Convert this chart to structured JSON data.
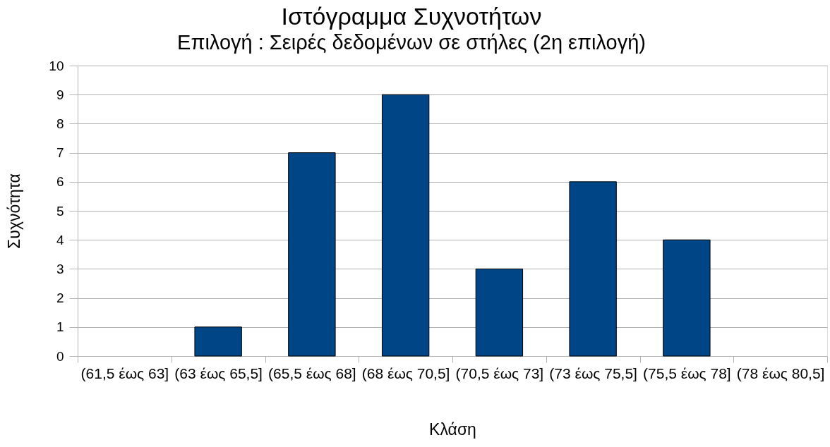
{
  "chart_data": {
    "type": "bar",
    "title": "Ιστόγραμμα Συχνοτήτων",
    "subtitle": "Επιλογή : Σειρές δεδομένων σε στήλες (2η επιλογή)",
    "xlabel": "Κλάση",
    "ylabel": "Συχνότητα",
    "categories": [
      "(61,5 έως 63]",
      "(63 έως 65,5]",
      "(65,5 έως 68]",
      "(68 έως 70,5]",
      "(70,5 έως 73]",
      "(73 έως 75,5]",
      "(75,5 έως 78]",
      "(78 έως 80,5]"
    ],
    "values": [
      0,
      1,
      7,
      9,
      3,
      6,
      4,
      0
    ],
    "color": "#004586",
    "ylim": [
      0,
      10
    ],
    "yticks": [
      0,
      1,
      2,
      3,
      4,
      5,
      6,
      7,
      8,
      9,
      10
    ],
    "grid": "y"
  }
}
